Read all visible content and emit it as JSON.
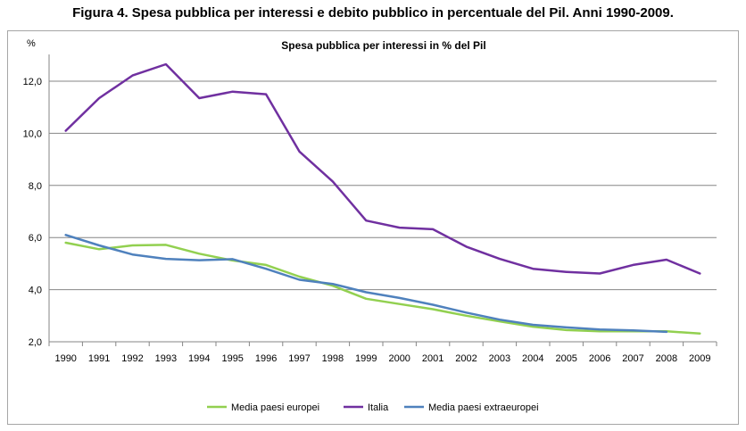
{
  "figure_title": "Figura 4. Spesa pubblica per interessi e debito pubblico in percentuale del Pil. Anni 1990-2009.",
  "chart_data": {
    "type": "line",
    "title": "Spesa pubblica per interessi in % del Pil",
    "ylabel": "%",
    "xlabel": "",
    "ylim": [
      2.0,
      12.0
    ],
    "yticks": [
      2.0,
      4.0,
      6.0,
      8.0,
      10.0,
      12.0
    ],
    "ytick_labels": [
      "2,0",
      "4,0",
      "6,0",
      "8,0",
      "10,0",
      "12,0"
    ],
    "categories": [
      "1990",
      "1991",
      "1992",
      "1993",
      "1994",
      "1995",
      "1996",
      "1997",
      "1998",
      "1999",
      "2000",
      "2001",
      "2002",
      "2003",
      "2004",
      "2005",
      "2006",
      "2007",
      "2008",
      "2009"
    ],
    "grid": "horizontal",
    "legend": "bottom",
    "series": [
      {
        "name": "Media paesi europei",
        "color": "#92d050",
        "values": [
          5.8,
          5.55,
          5.7,
          5.72,
          5.38,
          5.12,
          4.95,
          4.5,
          4.15,
          3.65,
          3.45,
          3.25,
          3.0,
          2.78,
          2.58,
          2.45,
          2.4,
          2.4,
          2.4,
          2.32
        ]
      },
      {
        "name": "Italia",
        "color": "#7030a0",
        "values": [
          10.1,
          11.35,
          12.22,
          12.65,
          11.35,
          11.6,
          11.5,
          9.3,
          8.15,
          6.65,
          6.38,
          6.32,
          5.65,
          5.18,
          4.8,
          4.68,
          4.62,
          4.95,
          5.15,
          4.62
        ]
      },
      {
        "name": "Media paesi extraeuropei",
        "color": "#4f81bd",
        "values": [
          6.1,
          5.7,
          5.35,
          5.18,
          5.13,
          5.17,
          4.8,
          4.38,
          4.22,
          3.9,
          3.68,
          3.42,
          3.12,
          2.85,
          2.65,
          2.55,
          2.47,
          2.44,
          2.38,
          null
        ]
      }
    ]
  }
}
